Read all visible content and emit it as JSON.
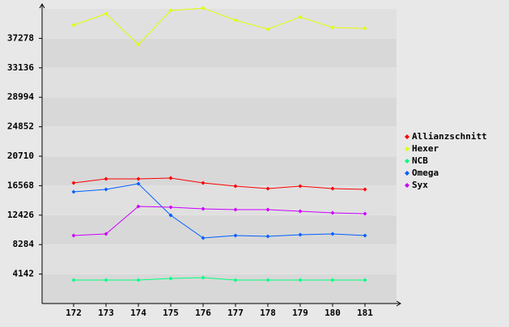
{
  "chart_data": {
    "type": "line",
    "categories": [
      "172",
      "173",
      "174",
      "175",
      "176",
      "177",
      "178",
      "179",
      "180",
      "181"
    ],
    "series": [
      {
        "name": "Allianzschnitt",
        "color": "#ff0000",
        "values": [
          16955,
          17524,
          17524,
          17638,
          16955,
          16500,
          16158,
          16500,
          16158,
          16044
        ]
      },
      {
        "name": "Hexer",
        "color": "#e0ff00",
        "values": [
          39144,
          40737,
          36413,
          41192,
          41533,
          39827,
          38575,
          40281,
          38803,
          38689
        ]
      },
      {
        "name": "NCB",
        "color": "#00ff80",
        "values": [
          3300,
          3300,
          3300,
          3527,
          3641,
          3300,
          3300,
          3300,
          3300,
          3300
        ]
      },
      {
        "name": "Omega",
        "color": "#0060ff",
        "values": [
          15703,
          16044,
          16841,
          12403,
          9217,
          9558,
          9444,
          9672,
          9786,
          9558
        ]
      },
      {
        "name": "Syx",
        "color": "#cc00ff",
        "values": [
          9558,
          9786,
          13655,
          13541,
          13313,
          13200,
          13200,
          12972,
          12744,
          12631
        ]
      }
    ],
    "ylim": [
      0,
      41420
    ],
    "yticks": [
      4142,
      8284,
      12426,
      16568,
      20710,
      24852,
      28994,
      33136,
      37278
    ],
    "grid": true,
    "legend": "right"
  }
}
